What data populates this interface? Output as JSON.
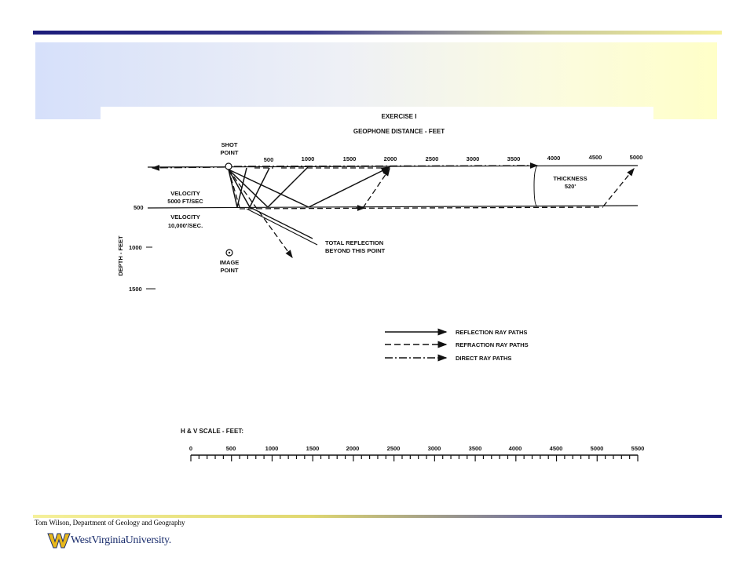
{
  "footer": {
    "author": "Tom Wilson, Department of Geology and Geography",
    "logo_text": "WestVirginiaUniversity."
  },
  "figure": {
    "title": "EXERCISE I",
    "subtitle": "GEOPHONE DISTANCE - FEET",
    "shot_point": [
      "SHOT",
      "POINT"
    ],
    "distance_ticks": [
      "500",
      "1000",
      "1500",
      "2000",
      "2500",
      "3000",
      "3500",
      "4000",
      "4500",
      "5000"
    ],
    "depth_label": "DEPTH - FEET",
    "depth_ticks": [
      "500",
      "1000",
      "1500"
    ],
    "upper_layer": [
      "VELOCITY",
      "5000 FT/SEC"
    ],
    "lower_layer": [
      "VELOCITY",
      "10,000'/SEC."
    ],
    "thickness": [
      "THICKNESS",
      "520'"
    ],
    "total_reflection": [
      "TOTAL REFLECTION",
      "BEYOND THIS POINT"
    ],
    "image_point": [
      "IMAGE",
      "POINT"
    ],
    "legend": [
      "REFLECTION RAY PATHS",
      "REFRACTION RAY PATHS",
      "DIRECT RAY PATHS"
    ],
    "scale_label": "H & V SCALE - FEET:",
    "scale_ticks": [
      "0",
      "500",
      "1000",
      "1500",
      "2000",
      "2500",
      "3000",
      "3500",
      "4000",
      "4500",
      "5000",
      "5500"
    ]
  }
}
